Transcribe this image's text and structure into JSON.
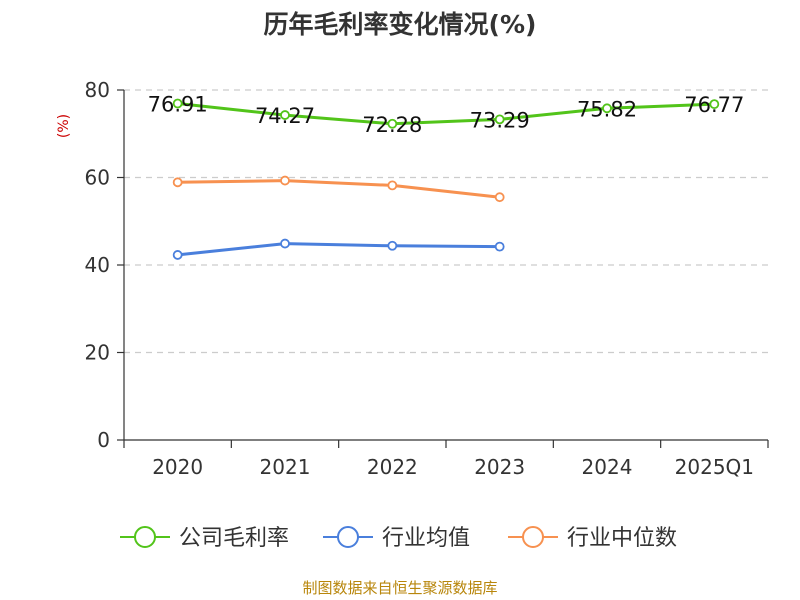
{
  "chart_data": {
    "type": "line",
    "title": "历年毛利率变化情况(%)",
    "ylabel": "(%)",
    "categories": [
      "2020",
      "2021",
      "2022",
      "2023",
      "2024",
      "2025Q1"
    ],
    "ylim": [
      0,
      80
    ],
    "yticks": [
      0,
      20,
      40,
      60,
      80
    ],
    "grid": true,
    "legend_position": "bottom",
    "series": [
      {
        "name": "公司毛利率",
        "color": "#52c41a",
        "values": [
          76.91,
          74.27,
          72.28,
          73.29,
          75.82,
          76.77
        ],
        "show_labels": true
      },
      {
        "name": "行业均值",
        "color": "#4a7fdc",
        "values": [
          42.3,
          44.9,
          44.4,
          44.2,
          null,
          null
        ],
        "show_labels": false
      },
      {
        "name": "行业中位数",
        "color": "#f79150",
        "values": [
          58.9,
          59.3,
          58.2,
          55.5,
          null,
          null
        ],
        "show_labels": false
      }
    ]
  },
  "source_text": "制图数据来自恒生聚源数据库"
}
